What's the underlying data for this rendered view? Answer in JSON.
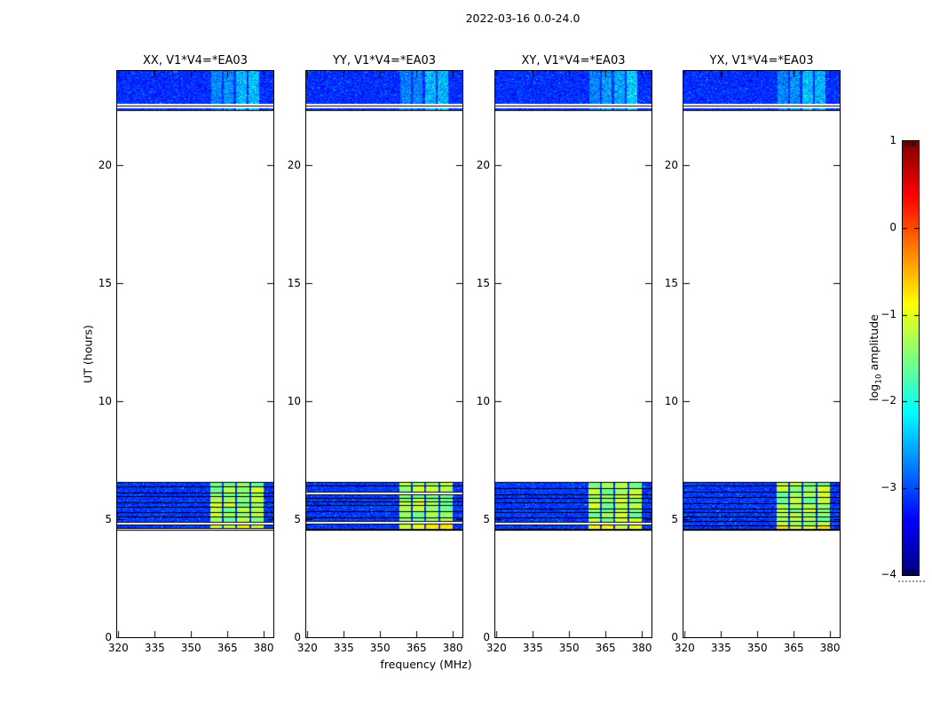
{
  "chart_data": {
    "type": "heatmap",
    "title": "2022-03-16 0.0-24.0",
    "panels": [
      {
        "pol": "XX",
        "title": "XX, V1*V4=*EA03"
      },
      {
        "pol": "YY",
        "title": "YY, V1*V4=*EA03"
      },
      {
        "pol": "XY",
        "title": "XY, V1*V4=*EA03"
      },
      {
        "pol": "YX",
        "title": "YX, V1*V4=*EA03"
      }
    ],
    "x_axis": {
      "label": "frequency (MHz)",
      "ticks": [
        320,
        335,
        350,
        365,
        380
      ],
      "range": [
        319.5,
        384
      ]
    },
    "y_axis": {
      "label": "UT (hours)",
      "ticks": [
        0,
        5,
        10,
        15,
        20
      ],
      "range": [
        0,
        24
      ]
    },
    "colorbar": {
      "label_prefix": "log",
      "label_sub": "10",
      "label_suffix": " amplitude",
      "tick_labels": [
        "1",
        "0",
        "−1",
        "−2",
        "−3",
        "−4"
      ],
      "tick_values": [
        1,
        0,
        -1,
        -2,
        -3,
        -4
      ],
      "range": [
        -4,
        1
      ],
      "colormap": "jet"
    },
    "features": {
      "top_band": {
        "hours": [
          22.35,
          24.0
        ],
        "base_amp": -3.15,
        "bright_columns_mhz": [
          [
            358.5,
            362.8
          ],
          [
            363.6,
            367.6
          ],
          [
            368.5,
            372.9
          ],
          [
            373.8,
            378.2
          ]
        ],
        "column_boosts": [
          0.55,
          0.6,
          0.85,
          0.95
        ]
      },
      "bottom_band": {
        "hours": [
          4.55,
          6.58
        ],
        "base_amp": -3.1,
        "bright_amp": -1.35,
        "bright_columns_mhz": [
          [
            357.8,
            362.8
          ],
          [
            363.5,
            368.3
          ],
          [
            369.0,
            374.0
          ],
          [
            374.8,
            379.8
          ]
        ]
      }
    }
  }
}
